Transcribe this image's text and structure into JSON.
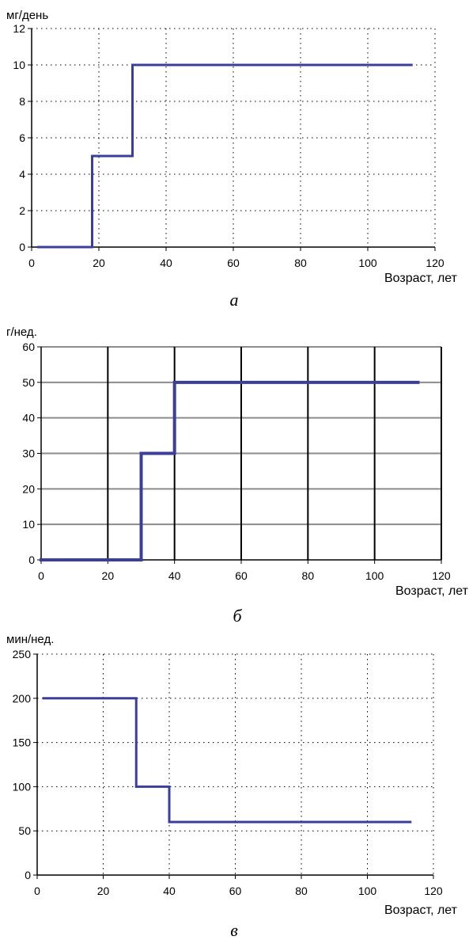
{
  "chart_data": [
    {
      "type": "line",
      "step": true,
      "panel_label": "а",
      "ylabel": "мг/день",
      "xlabel": "Возраст, лет",
      "xlim": [
        0,
        120
      ],
      "ylim": [
        0,
        12
      ],
      "xticks": [
        0,
        20,
        40,
        60,
        80,
        100,
        120
      ],
      "yticks": [
        0,
        2,
        4,
        6,
        8,
        10,
        12
      ],
      "grid": "dotted",
      "line_color": "#3b3f9a",
      "series": [
        {
          "x": [
            2,
            18,
            18,
            30,
            30,
            113
          ],
          "y": [
            0,
            0,
            5,
            5,
            10,
            10
          ]
        }
      ]
    },
    {
      "type": "line",
      "step": true,
      "panel_label": "б",
      "ylabel": "г/нед.",
      "xlabel": "Возраст, лет",
      "xlim": [
        0,
        120
      ],
      "ylim": [
        0,
        60
      ],
      "xticks": [
        0,
        20,
        40,
        60,
        80,
        100,
        120
      ],
      "yticks": [
        0,
        10,
        20,
        30,
        40,
        50,
        60
      ],
      "grid": "solid",
      "line_color": "#3b3f9a",
      "series": [
        {
          "x": [
            0,
            30,
            30,
            40,
            40,
            113
          ],
          "y": [
            0,
            0,
            30,
            30,
            50,
            50
          ]
        }
      ]
    },
    {
      "type": "line",
      "step": true,
      "panel_label": "в",
      "ylabel": "мин/нед.",
      "xlabel": "Возраст, лет",
      "xlim": [
        0,
        120
      ],
      "ylim": [
        0,
        250
      ],
      "xticks": [
        0,
        20,
        40,
        60,
        80,
        100,
        120
      ],
      "yticks": [
        0,
        50,
        100,
        150,
        200,
        250
      ],
      "grid": "dotted",
      "line_color": "#3b3f9a",
      "series": [
        {
          "x": [
            2,
            30,
            30,
            40,
            40,
            113
          ],
          "y": [
            200,
            200,
            100,
            100,
            60,
            60
          ]
        }
      ]
    }
  ]
}
